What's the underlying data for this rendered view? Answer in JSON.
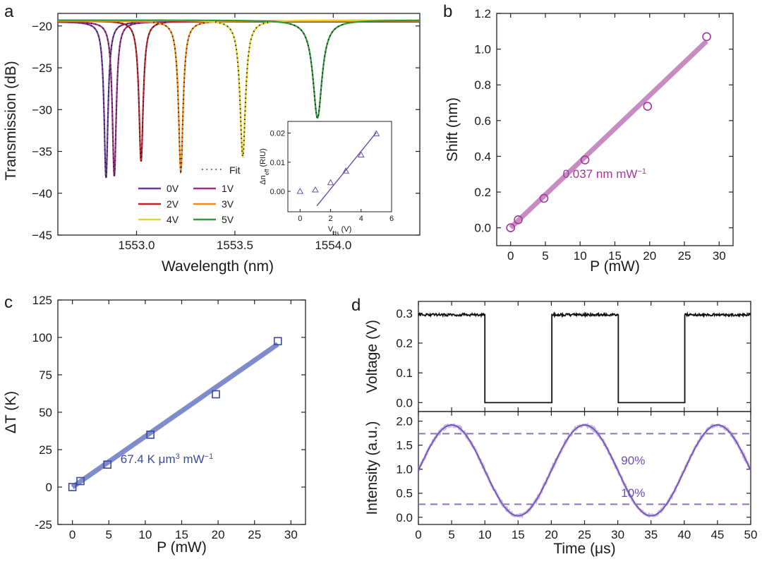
{
  "chart_data": [
    {
      "panel": "a",
      "type": "line",
      "title": "",
      "xlabel": "Wavelength (nm)",
      "ylabel": "Transmission (dB)",
      "xlim": [
        1552.6,
        1554.44
      ],
      "ylim": [
        -45,
        -18.5
      ],
      "xticks": [
        1553.0,
        1553.5,
        1554.0
      ],
      "xtick_labels": [
        "1553.0",
        "1553.5",
        "1554.0"
      ],
      "yticks": [
        -45,
        -40,
        -35,
        -30,
        -25,
        -20
      ],
      "ytick_labels": [
        "−45",
        "−40",
        "−35",
        "−30",
        "−25",
        "−20"
      ],
      "grid": false,
      "legend": {
        "placement": "bottom-center",
        "fit_label": "Fit",
        "entries": [
          {
            "label": "0V",
            "color": "#6a3d9a"
          },
          {
            "label": "1V",
            "color": "#9b2f8c"
          },
          {
            "label": "2V",
            "color": "#c0242b"
          },
          {
            "label": "3V",
            "color": "#f18a1c"
          },
          {
            "label": "4V",
            "color": "#e8d22c"
          },
          {
            "label": "5V",
            "color": "#2e9a3c"
          }
        ]
      },
      "series": [
        {
          "name": "0V",
          "color": "#6a3d9a",
          "baseline": -19.5,
          "center": 1552.845,
          "min": -38.2,
          "hwhm": 0.012
        },
        {
          "name": "1V",
          "color": "#9b2f8c",
          "baseline": -19.5,
          "center": 1552.887,
          "min": -38.0,
          "hwhm": 0.012
        },
        {
          "name": "2V",
          "color": "#c0242b",
          "baseline": -19.4,
          "center": 1553.023,
          "min": -36.2,
          "hwhm": 0.013
        },
        {
          "name": "3V",
          "color": "#f18a1c",
          "baseline": -19.4,
          "center": 1553.225,
          "min": -37.4,
          "hwhm": 0.014
        },
        {
          "name": "4V",
          "color": "#e8d22c",
          "baseline": -19.3,
          "center": 1553.54,
          "min": -35.6,
          "hwhm": 0.017
        },
        {
          "name": "5V",
          "color": "#2e9a3c",
          "baseline": -19.3,
          "center": 1553.92,
          "min": -31.0,
          "hwhm": 0.028
        }
      ],
      "inset": {
        "type": "scatter",
        "xlabel": "V",
        "xlabel_sub": "ds",
        "xlabel_unit": " (V)",
        "ylabel": "Δn",
        "ylabel_sub": "eff",
        "ylabel_unit": " (RIU)",
        "xlim": [
          -0.8,
          6
        ],
        "ylim": [
          -0.007,
          0.024
        ],
        "xticks": [
          0,
          2,
          4,
          6
        ],
        "xtick_labels": [
          "0",
          "2",
          "4",
          "6"
        ],
        "yticks": [
          0.0,
          0.01,
          0.02
        ],
        "ytick_labels": [
          "0.00",
          "0.01",
          "0.02"
        ],
        "x": [
          0,
          1,
          2,
          3,
          4,
          5
        ],
        "y": [
          0.0,
          0.0005,
          0.003,
          0.007,
          0.0125,
          0.0198
        ],
        "fit": {
          "x": [
            1.1,
            5.0
          ],
          "y": [
            -0.005,
            0.0202
          ]
        },
        "color": "#6a4fb0"
      }
    },
    {
      "panel": "b",
      "type": "scatter",
      "title": "",
      "xlabel": "P (mW)",
      "ylabel": "Shift (nm)",
      "xlim": [
        -2,
        32
      ],
      "ylim": [
        -0.1,
        1.2
      ],
      "xticks": [
        0,
        5,
        10,
        15,
        20,
        25,
        30
      ],
      "xtick_labels": [
        "0",
        "5",
        "10",
        "15",
        "20",
        "25",
        "30"
      ],
      "yticks": [
        0.0,
        0.2,
        0.4,
        0.6,
        0.8,
        1.0,
        1.2
      ],
      "ytick_labels": [
        "0.0",
        "0.2",
        "0.4",
        "0.6",
        "0.8",
        "1.0",
        "1.2"
      ],
      "x": [
        0,
        1.1,
        4.8,
        10.7,
        19.7,
        28.2
      ],
      "y": [
        0.0,
        0.045,
        0.165,
        0.38,
        0.68,
        1.07
      ],
      "fit": {
        "x": [
          0,
          28.2
        ],
        "y": [
          0.0,
          1.045
        ]
      },
      "annotation": {
        "text": "0.037 nm mW",
        "sup": "−1",
        "x": 7.5,
        "y": 0.28
      },
      "color": "#a2389b",
      "fit_color": "#c78cc2"
    },
    {
      "panel": "c",
      "type": "scatter",
      "title": "",
      "xlabel": "P (mW)",
      "ylabel": "ΔT (K)",
      "xlim": [
        -2,
        32
      ],
      "ylim": [
        -25,
        125
      ],
      "xticks": [
        0,
        5,
        10,
        15,
        20,
        25,
        30
      ],
      "xtick_labels": [
        "0",
        "5",
        "10",
        "15",
        "20",
        "25",
        "30"
      ],
      "yticks": [
        -25,
        0,
        25,
        50,
        75,
        100,
        125
      ],
      "ytick_labels": [
        "-25",
        "0",
        "25",
        "50",
        "75",
        "100",
        "125"
      ],
      "x": [
        0,
        1.1,
        4.8,
        10.7,
        19.7,
        28.2
      ],
      "y": [
        0,
        4,
        15,
        35,
        62,
        97.5
      ],
      "fit": {
        "x": [
          0,
          28.2
        ],
        "y": [
          0,
          95.5
        ]
      },
      "annotation": {
        "text": "67.4 K μm",
        "sup": "3",
        "text2": " mW",
        "sup2": "−1",
        "x": 6.6,
        "y": 16
      },
      "color": "#3b4a9e",
      "fit_color": "#7f8ccc"
    },
    {
      "panel": "d",
      "type": "line",
      "title": "",
      "xlabel": "Time (μs)",
      "xlim": [
        0,
        50
      ],
      "xticks": [
        0,
        5,
        10,
        15,
        20,
        25,
        30,
        35,
        40,
        45,
        50
      ],
      "xtick_labels": [
        "0",
        "5",
        "10",
        "15",
        "20",
        "25",
        "30",
        "35",
        "40",
        "45",
        "50"
      ],
      "top": {
        "ylabel": "Voltage (V)",
        "ylim": [
          -0.03,
          0.34
        ],
        "yticks": [
          0.0,
          0.1,
          0.2,
          0.3
        ],
        "ytick_labels": [
          "0.0",
          "0.1",
          "0.2",
          "0.3"
        ],
        "high": 0.295,
        "low": 0.0,
        "edges": [
          10,
          20,
          30,
          40
        ],
        "color": "#111111"
      },
      "bottom": {
        "ylabel": "Intensity (a.u.)",
        "ylim": [
          -0.15,
          2.2
        ],
        "yticks": [
          0.0,
          0.5,
          1.0,
          1.5,
          2.0
        ],
        "ytick_labels": [
          "0.0",
          "0.5",
          "1.0",
          "1.5",
          "2.0"
        ],
        "max": 1.92,
        "min": 0.03,
        "peaks": [
          5,
          25,
          45
        ],
        "troughs": [
          15.5,
          35.5
        ],
        "level_90": 1.74,
        "level_10": 0.27,
        "label_90": "90%",
        "label_10": "10%",
        "color": "#6a4fb0",
        "line_color": "#8e72c9"
      }
    }
  ],
  "panel_labels": {
    "a": "a",
    "b": "b",
    "c": "c",
    "d": "d"
  }
}
